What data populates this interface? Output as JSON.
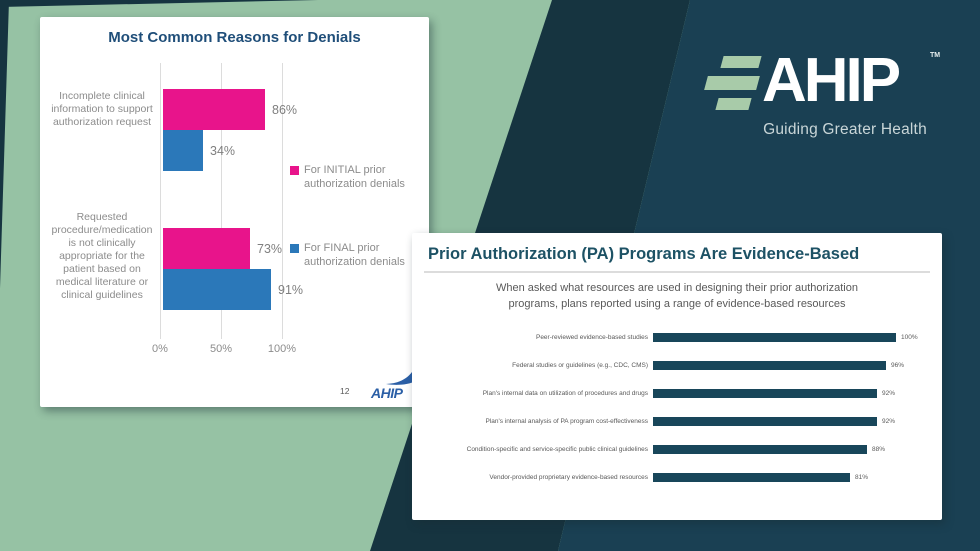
{
  "colors": {
    "background_green": "#96C2A4",
    "background_band": "#163440",
    "background_navy": "#1A4053",
    "denials_title_blue": "#1F4E79",
    "evidence_title_teal": "#1D5265",
    "pink_series": "#E8148B",
    "blue_series": "#2B78B9",
    "evidence_bar": "#18465A",
    "brand_bar_green": "#A8CBA9"
  },
  "brand": {
    "name": "AHIP",
    "trademark": "TM",
    "tagline": "Guiding Greater Health"
  },
  "denials_card": {
    "page_number": "12",
    "footer_logo_text": "AHIP"
  },
  "chart_data": [
    {
      "type": "bar",
      "orientation": "horizontal",
      "title": "Most Common Reasons for Denials",
      "categories": [
        "Incomplete clinical information to support authorization request",
        "Requested procedure/medication is not clinically appropriate for the patient based on medical literature or clinical guidelines"
      ],
      "series": [
        {
          "name": "For INITIAL prior authorization denials",
          "color": "#E8148B",
          "values": [
            86,
            73
          ]
        },
        {
          "name": "For FINAL prior authorization denials",
          "color": "#2B78B9",
          "values": [
            34,
            91
          ]
        }
      ],
      "x_ticks": [
        "0%",
        "50%",
        "100%"
      ],
      "xlim": [
        0,
        100
      ],
      "grid": true,
      "legend_position": "right"
    },
    {
      "type": "bar",
      "orientation": "horizontal",
      "title": "Prior Authorization (PA) Programs Are Evidence-Based",
      "subtitle": "When asked what resources are used in designing their prior authorization\nprograms, plans reported using a range of evidence-based resources",
      "categories": [
        "Peer-reviewed evidence-based studies",
        "Federal studies or guidelines (e.g., CDC, CMS)",
        "Plan's internal data on utilization of procedures and drugs",
        "Plan's internal analysis of PA program cost-effectiveness",
        "Condition-specific and service-specific public clinical guidelines",
        "Vendor-provided proprietary evidence-based resources"
      ],
      "values": [
        100,
        96,
        92,
        92,
        88,
        81
      ],
      "bar_color": "#18465A",
      "xlim": [
        0,
        100
      ],
      "grid": false
    }
  ]
}
